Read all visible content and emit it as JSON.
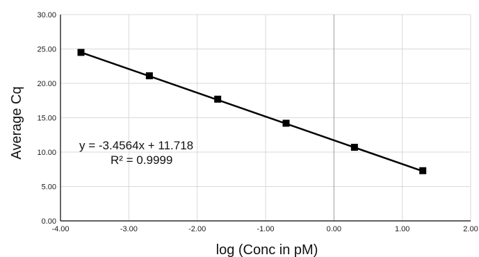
{
  "chart_data": {
    "type": "scatter",
    "xlabel": "log (Conc in pM)",
    "ylabel": "Average Cq",
    "xlim": [
      -4,
      2
    ],
    "ylim": [
      0,
      30
    ],
    "x_ticks": [
      "-4.00",
      "-3.00",
      "-2.00",
      "-1.00",
      "0.00",
      "1.00",
      "2.00"
    ],
    "y_ticks": [
      "0.00",
      "5.00",
      "10.00",
      "15.00",
      "20.00",
      "25.00",
      "30.00"
    ],
    "grid": true,
    "series": [
      {
        "points": [
          {
            "x": -3.7,
            "y": 24.5
          },
          {
            "x": -2.7,
            "y": 21.1
          },
          {
            "x": -1.7,
            "y": 17.7
          },
          {
            "x": -0.7,
            "y": 14.2
          },
          {
            "x": 0.3,
            "y": 10.7
          },
          {
            "x": 1.3,
            "y": 7.3
          }
        ],
        "marker": "square",
        "color": "#000000"
      }
    ],
    "trendline": {
      "slope": -3.4564,
      "intercept": 11.718,
      "x_range": [
        -3.7,
        1.3
      ],
      "equation": "y = -3.4564x + 11.718",
      "r_squared": "R² = 0.9999"
    }
  }
}
